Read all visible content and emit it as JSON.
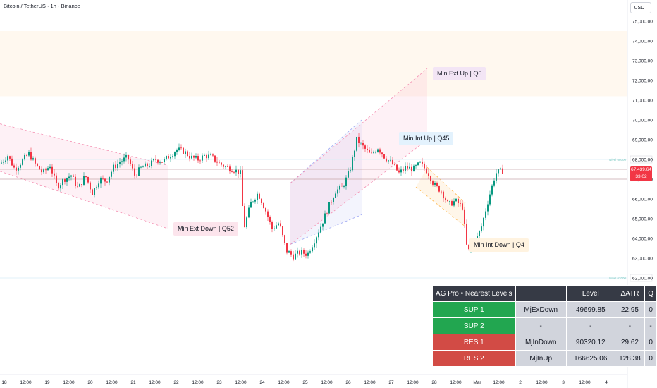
{
  "header": {
    "title": "Bitcoin / TetherUS · 1h · Binance",
    "currency": "USDT"
  },
  "price_badge": {
    "price": "67,439.64",
    "countdown": "33:02"
  },
  "level_tags": [
    {
      "text": "Nivel 68000",
      "price": 68000
    },
    {
      "text": "Nivel 62000",
      "price": 62000
    }
  ],
  "chart_data": {
    "type": "candlestick",
    "symbol": "Bitcoin / TetherUS",
    "interval": "1h",
    "exchange": "Binance",
    "y_axis": {
      "ylim": [
        57500,
        75700
      ],
      "ticks": [
        58000,
        59000,
        60000,
        61000,
        62000,
        63000,
        64000,
        65000,
        66000,
        67000,
        68000,
        69000,
        70000,
        71000,
        72000,
        73000,
        74000,
        75000
      ]
    },
    "x_axis": {
      "ticks": [
        "18",
        "12:00",
        "19",
        "12:00",
        "20",
        "12:00",
        "21",
        "12:00",
        "22",
        "12:00",
        "23",
        "12:00",
        "24",
        "12:00",
        "25",
        "12:00",
        "26",
        "12:00",
        "27",
        "12:00",
        "28",
        "12:00",
        "Mar",
        "12:00",
        "2",
        "12:00",
        "3",
        "12:00",
        "4"
      ]
    },
    "close_path": [
      [
        0,
        67800
      ],
      [
        10,
        68200
      ],
      [
        20,
        67500
      ],
      [
        30,
        67900
      ],
      [
        40,
        68300
      ],
      [
        50,
        67700
      ],
      [
        60,
        67300
      ],
      [
        70,
        67700
      ],
      [
        80,
        66600
      ],
      [
        90,
        67000
      ],
      [
        100,
        67200
      ],
      [
        110,
        66500
      ],
      [
        120,
        67200
      ],
      [
        130,
        66300
      ],
      [
        140,
        67000
      ],
      [
        150,
        66900
      ],
      [
        160,
        67600
      ],
      [
        170,
        67900
      ],
      [
        180,
        68100
      ],
      [
        190,
        67200
      ],
      [
        200,
        67600
      ],
      [
        210,
        67700
      ],
      [
        220,
        68000
      ],
      [
        230,
        67900
      ],
      [
        240,
        68200
      ],
      [
        250,
        68500
      ],
      [
        260,
        68400
      ],
      [
        270,
        68100
      ],
      [
        280,
        68000
      ],
      [
        290,
        68200
      ],
      [
        300,
        68100
      ],
      [
        310,
        67800
      ],
      [
        320,
        67600
      ],
      [
        330,
        67500
      ],
      [
        340,
        67300
      ],
      [
        345,
        64500
      ],
      [
        355,
        65800
      ],
      [
        365,
        66300
      ],
      [
        375,
        65500
      ],
      [
        385,
        64500
      ],
      [
        395,
        64800
      ],
      [
        405,
        63400
      ],
      [
        415,
        63100
      ],
      [
        425,
        63300
      ],
      [
        435,
        63200
      ],
      [
        445,
        63900
      ],
      [
        455,
        64700
      ],
      [
        465,
        65600
      ],
      [
        475,
        66400
      ],
      [
        485,
        66600
      ],
      [
        495,
        67400
      ],
      [
        505,
        69000
      ],
      [
        515,
        68600
      ],
      [
        525,
        68200
      ],
      [
        535,
        68600
      ],
      [
        545,
        68100
      ],
      [
        555,
        67800
      ],
      [
        565,
        67300
      ],
      [
        575,
        67600
      ],
      [
        585,
        67500
      ],
      [
        595,
        67800
      ],
      [
        605,
        67400
      ],
      [
        615,
        66700
      ],
      [
        625,
        66400
      ],
      [
        635,
        65700
      ],
      [
        645,
        65900
      ],
      [
        655,
        65600
      ],
      [
        662,
        63300
      ],
      [
        672,
        63700
      ],
      [
        682,
        64600
      ],
      [
        692,
        66000
      ],
      [
        702,
        67300
      ],
      [
        712,
        67440
      ]
    ],
    "current_price": 67439.64,
    "price_lines": [
      67500,
      67000
    ],
    "zones": [
      {
        "kind": "band",
        "price_top": 74500,
        "price_bottom": 71200,
        "color": "#fff8ef"
      }
    ],
    "channels": [
      {
        "label": "Min Ext Down | Q52",
        "color": "#f48fb1",
        "upper": [
          [
            0,
            69800
          ],
          [
            238,
            67700
          ]
        ],
        "lower": [
          [
            0,
            67400
          ],
          [
            238,
            64500
          ]
        ]
      },
      {
        "label": "Min Int Up | Q45",
        "color": "#9ba5f2",
        "upper": [
          [
            412,
            66800
          ],
          [
            513,
            70000
          ]
        ],
        "lower": [
          [
            412,
            63700
          ],
          [
            513,
            65200
          ]
        ]
      },
      {
        "label": "Min Ext Up | Q6",
        "color": "#f48fb1",
        "upper": [
          [
            412,
            66800
          ],
          [
            606,
            72600
          ]
        ],
        "lower": [
          [
            412,
            63700
          ],
          [
            606,
            69000
          ]
        ]
      },
      {
        "label": "Min Int Down | Q4",
        "color": "#ffb74d",
        "upper": [
          [
            606,
            67600
          ],
          [
            660,
            65800
          ]
        ],
        "lower": [
          [
            590,
            66600
          ],
          [
            660,
            64600
          ]
        ]
      }
    ],
    "level_tags": [
      68000,
      62000
    ]
  },
  "labels": {
    "min_ext_down": "Min Ext Down | Q52",
    "min_int_up": "Min Int Up | Q45",
    "min_ext_up": "Min Ext Up | Q6",
    "min_int_down": "Min Int Down | Q4"
  },
  "levels_table": {
    "title": "AG Pro • Nearest Levels",
    "headers": [
      "",
      "Level",
      "ΔATR",
      "Q"
    ],
    "rows": [
      {
        "name": "SUP 1",
        "type": "MjExDown",
        "level": "49699.85",
        "atr": "22.95",
        "q": "0",
        "kind": "sup"
      },
      {
        "name": "SUP 2",
        "type": "-",
        "level": "-",
        "atr": "-",
        "q": "-",
        "kind": "sup"
      },
      {
        "name": "RES 1",
        "type": "MjInDown",
        "level": "90320.12",
        "atr": "29.62",
        "q": "0",
        "kind": "res"
      },
      {
        "name": "RES 2",
        "type": "MjInUp",
        "level": "166625.06",
        "atr": "128.38",
        "q": "0",
        "kind": "res"
      }
    ]
  }
}
